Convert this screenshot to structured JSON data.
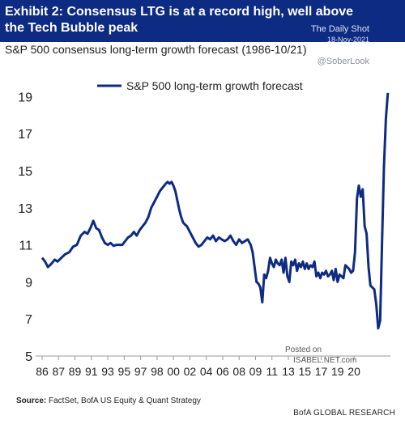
{
  "header": {
    "title": "Exhibit 2: Consensus LTG is at a record high, well above the Tech Bubble peak",
    "subtitle": "S&P 500 consensus long-term growth forecast (1986-10/21)"
  },
  "watermark": {
    "line1": "The Daily Shot",
    "line2": "18-Nov-2021",
    "line3": "@SoberLook",
    "posted": "Posted on",
    "site": "ISABEL.NET.com"
  },
  "footer": {
    "source_label": "Source:",
    "source_text": " FactSet, BofA US Equity & Quant Strategy",
    "publisher": "BofA GLOBAL RESEARCH"
  },
  "colors": {
    "line": "#0d2b82",
    "header_bg": "#0d2b82"
  },
  "chart_data": {
    "type": "line",
    "title": "S&P 500 consensus long-term growth forecast (1986-10/21)",
    "xlabel": "",
    "ylabel": "",
    "ylim": [
      5,
      19.5
    ],
    "xlim": [
      1986,
      2021.9
    ],
    "yticks": [
      5,
      7,
      9,
      11,
      13,
      15,
      17,
      19
    ],
    "xtick_labels": [
      "86",
      "87",
      "89",
      "91",
      "93",
      "95",
      "97",
      "98",
      "00",
      "02",
      "04",
      "06",
      "08",
      "09",
      "11",
      "13",
      "15",
      "17",
      "19",
      "20"
    ],
    "xtick_positions": [
      1986,
      1987.7,
      1989.4,
      1991.1,
      1992.8,
      1994.5,
      1996.2,
      1997.9,
      1999.6,
      2001.3,
      2003.0,
      2004.7,
      2006.4,
      2008.1,
      2009.8,
      2011.5,
      2013.2,
      2014.9,
      2016.6,
      2018.3
    ],
    "legend": "top-left",
    "grid": false,
    "series": [
      {
        "name": "S&P 500 long-term growth forecast",
        "x": [
          1986.0,
          1986.3,
          1986.6,
          1987.0,
          1987.3,
          1987.6,
          1988.0,
          1988.4,
          1988.8,
          1989.2,
          1989.6,
          1990.0,
          1990.4,
          1990.7,
          1991.0,
          1991.3,
          1991.6,
          1991.9,
          1992.2,
          1992.5,
          1992.8,
          1993.1,
          1993.4,
          1993.7,
          1994.0,
          1994.3,
          1994.6,
          1994.9,
          1995.2,
          1995.5,
          1995.8,
          1996.1,
          1996.4,
          1996.7,
          1997.0,
          1997.3,
          1997.6,
          1997.9,
          1998.2,
          1998.5,
          1998.8,
          1999.0,
          1999.2,
          1999.4,
          1999.6,
          1999.8,
          2000.0,
          2000.2,
          2000.4,
          2000.6,
          2000.8,
          2001.0,
          2001.3,
          2001.6,
          2001.9,
          2002.2,
          2002.5,
          2002.8,
          2003.1,
          2003.4,
          2003.7,
          2004.0,
          2004.3,
          2004.6,
          2004.9,
          2005.2,
          2005.5,
          2005.8,
          2006.1,
          2006.4,
          2006.7,
          2007.0,
          2007.3,
          2007.6,
          2007.8,
          2008.0,
          2008.2,
          2008.4,
          2008.6,
          2008.8,
          2009.0,
          2009.2,
          2009.4,
          2009.6,
          2009.8,
          2010.0,
          2010.2,
          2010.4,
          2010.6,
          2010.8,
          2011.0,
          2011.2,
          2011.4,
          2011.6,
          2011.8,
          2012.0,
          2012.2,
          2012.4,
          2012.6,
          2012.8,
          2013.0,
          2013.2,
          2013.4,
          2013.6,
          2013.8,
          2014.0,
          2014.2,
          2014.4,
          2014.6,
          2014.8,
          2015.0,
          2015.2,
          2015.4,
          2015.6,
          2015.8,
          2016.0,
          2016.2,
          2016.4,
          2016.6,
          2016.8,
          2017.0,
          2017.2,
          2017.4,
          2017.6,
          2017.8,
          2018.0,
          2018.2,
          2018.4,
          2018.6,
          2018.8,
          2019.0,
          2019.2,
          2019.4,
          2019.6,
          2019.8,
          2020.0,
          2020.2,
          2020.4,
          2020.6,
          2020.8,
          2021.0,
          2021.2,
          2021.4,
          2021.6,
          2021.8
        ],
        "values": [
          10.3,
          10.1,
          9.8,
          10.0,
          10.2,
          10.1,
          10.3,
          10.5,
          10.6,
          10.9,
          11.0,
          11.5,
          11.7,
          11.6,
          11.9,
          12.3,
          11.9,
          11.8,
          11.4,
          11.1,
          11.0,
          11.1,
          10.95,
          11.0,
          11.0,
          11.0,
          11.2,
          11.4,
          11.5,
          11.7,
          11.5,
          11.8,
          12.0,
          12.2,
          12.5,
          13.0,
          13.3,
          13.6,
          13.9,
          14.1,
          14.3,
          14.4,
          14.3,
          14.4,
          14.2,
          13.9,
          13.4,
          12.9,
          12.5,
          12.2,
          12.1,
          12.0,
          11.7,
          11.4,
          11.1,
          10.9,
          11.0,
          11.2,
          11.4,
          11.3,
          11.5,
          11.2,
          11.4,
          11.3,
          11.2,
          11.3,
          11.5,
          11.2,
          11.0,
          11.3,
          11.1,
          11.2,
          11.3,
          11.0,
          10.6,
          9.8,
          9.0,
          8.9,
          8.7,
          7.9,
          9.4,
          9.2,
          9.6,
          10.3,
          10.0,
          9.8,
          10.2,
          10.0,
          9.9,
          10.2,
          9.5,
          10.3,
          9.3,
          9.0,
          10.1,
          9.9,
          10.2,
          9.6,
          10.0,
          9.8,
          10.1,
          9.7,
          10.0,
          9.7,
          9.9,
          9.8,
          10.1,
          9.3,
          9.5,
          9.2,
          9.5,
          9.4,
          9.6,
          9.3,
          9.4,
          9.6,
          9.1,
          9.7,
          9.0,
          9.4,
          9.3,
          9.2,
          9.9,
          9.8,
          9.7,
          9.5,
          9.6,
          10.6,
          13.5,
          14.2,
          13.6,
          14.0,
          12.0,
          11.6,
          9.8,
          8.8,
          8.7,
          8.6,
          7.8,
          6.5,
          6.9,
          11.2,
          15.2,
          17.8,
          19.2
        ]
      }
    ]
  }
}
